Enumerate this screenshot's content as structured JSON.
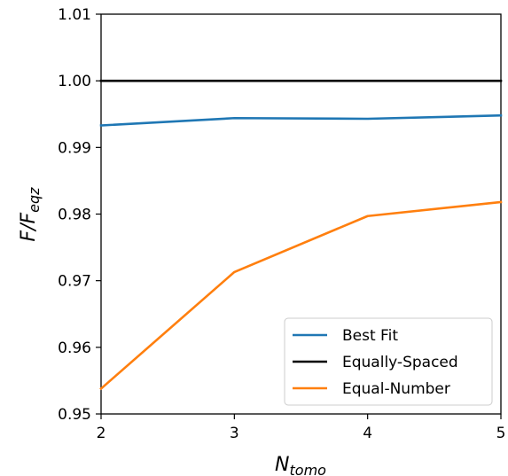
{
  "chart_data": {
    "type": "line",
    "x": [
      2,
      3,
      4,
      5
    ],
    "xlim": [
      2,
      5
    ],
    "ylim": [
      0.95,
      1.01
    ],
    "xticks": [
      "2",
      "3",
      "4",
      "5"
    ],
    "yticks": [
      "0.95",
      "0.96",
      "0.97",
      "0.98",
      "0.99",
      "1.00",
      "1.01"
    ],
    "ytick_values": [
      0.95,
      0.96,
      0.97,
      0.98,
      0.99,
      1.0,
      1.01
    ],
    "xlabel": {
      "base": "N",
      "sub": "tomo"
    },
    "ylabel": {
      "base": "F/F",
      "sub": "eqz"
    },
    "grid": false,
    "legend_position": "lower-right",
    "series": [
      {
        "name": "Best Fit",
        "color": "#1f77b4",
        "values": [
          0.9933,
          0.9944,
          0.9943,
          0.9948
        ]
      },
      {
        "name": "Equally-Spaced",
        "color": "#000000",
        "values": [
          1.0,
          1.0,
          1.0,
          1.0
        ]
      },
      {
        "name": "Equal-Number",
        "color": "#ff7f0e",
        "values": [
          0.9538,
          0.9713,
          0.9797,
          0.9818
        ]
      }
    ]
  }
}
